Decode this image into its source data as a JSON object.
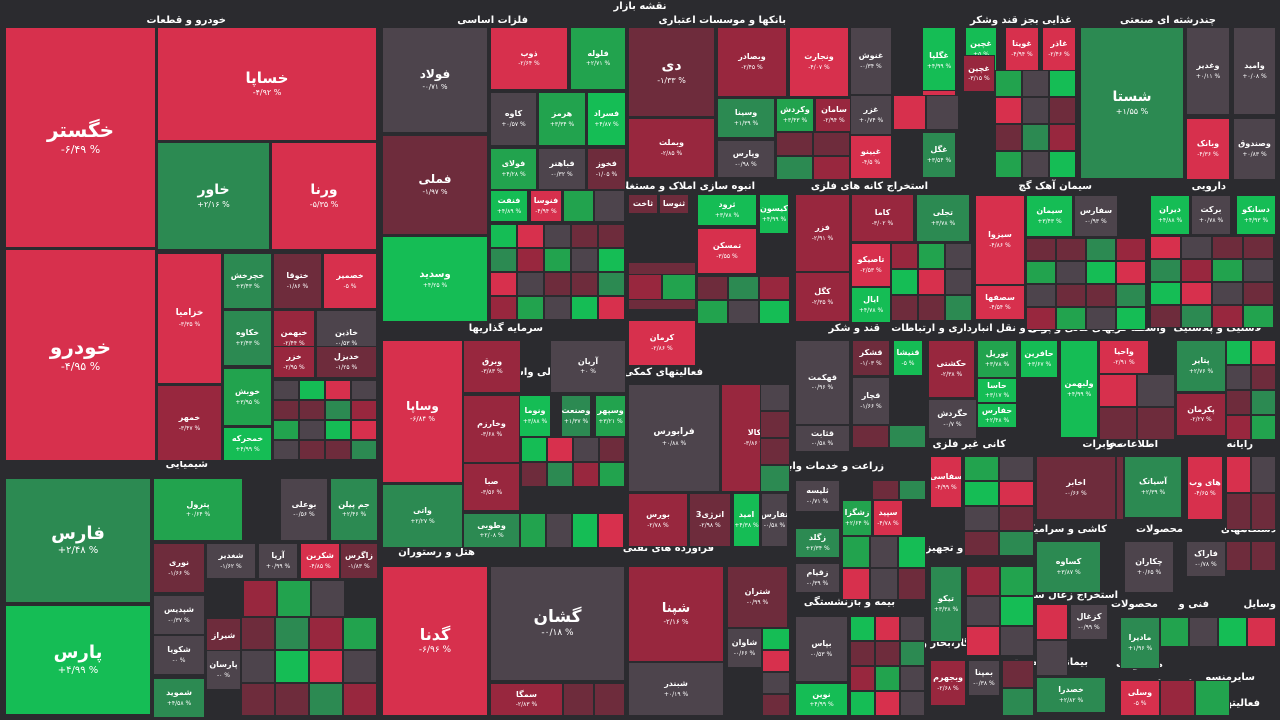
{
  "page": {
    "title": "نقشه بازار"
  },
  "colors": {
    "R": "#d7304d",
    "r": "#98273e",
    "d": "#6e2c3c",
    "n": "#4d444c",
    "g": "#22a34e",
    "G": "#2c8a52",
    "L": "#15bd55",
    "bg": "#2b2b2f"
  },
  "sections": [
    {
      "id": "s1",
      "label": "خودرو و قطعات"
    },
    {
      "id": "s2",
      "label": "فلزات اساسی"
    },
    {
      "id": "s3",
      "label": "بانکها و موسسات اعتباری"
    },
    {
      "id": "s4",
      "label": "غذایی بجز قند وشکر"
    },
    {
      "id": "s5",
      "label": "چندرشته ای صنعتی"
    },
    {
      "id": "s6",
      "label": "انبوه سازی املاک و مستغلات"
    },
    {
      "id": "s7",
      "label": "استخراج کانه های فلزی"
    },
    {
      "id": "s8",
      "label": "سیمان آهک گچ"
    },
    {
      "id": "s9",
      "label": "دارویی"
    },
    {
      "id": "s10",
      "label": "سرمایه گذاریها"
    },
    {
      "id": "s11",
      "label": "فعالیتهای کمکی به نهاد های مالی واسط"
    },
    {
      "id": "s12",
      "label": "قند و شکر"
    },
    {
      "id": "s13",
      "label": "حمل و نقل انبارداری و ارتباطات"
    },
    {
      "id": "s14",
      "label": "واسطه گریهای مالی و پولی"
    },
    {
      "id": "s15",
      "label": "لاستیک و پلاستیک"
    },
    {
      "id": "s16",
      "label": "شیمیایی"
    },
    {
      "id": "s17",
      "label": "کانی غیر فلزی"
    },
    {
      "id": "s18",
      "label": "مخابرات"
    },
    {
      "id": "s19",
      "label": "اطلاعات و"
    },
    {
      "id": "s20",
      "label": "رایانه"
    },
    {
      "id": "s21",
      "label": "زراعت و خدمات وابسته"
    },
    {
      "id": "s22",
      "label": "هتل و رستوران"
    },
    {
      "id": "s23",
      "label": "فرآورده های نفتی"
    },
    {
      "id": "s24",
      "label": "ماشین آلات و تجهیزات"
    },
    {
      "id": "s25",
      "label": "کاشی و سرامیک"
    },
    {
      "id": "s26",
      "label": "محصولات"
    },
    {
      "id": "s27",
      "label": "دستگاههای"
    },
    {
      "id": "s28",
      "label": "بیمه و بازنشستگی"
    },
    {
      "id": "s29",
      "label": "استخراج زغال سنگ"
    },
    {
      "id": "s30",
      "label": "محصولات"
    },
    {
      "id": "s31",
      "label": "فنی و"
    },
    {
      "id": "s32",
      "label": "وسایل"
    },
    {
      "id": "s33",
      "label": "عرضه برق،گاز،بخار و آب"
    },
    {
      "id": "s34",
      "label": "استخراج"
    },
    {
      "id": "s35",
      "label": "خرده"
    },
    {
      "id": "s36",
      "label": "بیمانکاری صنعتی"
    },
    {
      "id": "s37",
      "label": "محصولات"
    },
    {
      "id": "s38",
      "label": "استخراج"
    },
    {
      "id": "s39",
      "label": "منسو"
    },
    {
      "id": "s40",
      "label": "سایر"
    },
    {
      "id": "s41",
      "label": "فعالیتها"
    }
  ],
  "tiles": [
    {
      "name": "خگستر",
      "value": "-۶/۴۹ %",
      "color": "R"
    },
    {
      "name": "خساپا",
      "value": "-۴/۹۲ %",
      "color": "R"
    },
    {
      "name": "خاور",
      "value": "+۲/۱۶ %",
      "color": "G"
    },
    {
      "name": "ورنا",
      "value": "-۵/۳۵ %",
      "color": "R"
    },
    {
      "name": "خودرو",
      "value": "-۴/۹۵ %",
      "color": "R"
    },
    {
      "name": "خزامیا",
      "value": "-۳/۳۵ %",
      "color": "R"
    },
    {
      "name": "خچرخش",
      "value": "+۳/۴۳ %",
      "color": "G"
    },
    {
      "name": "ختوقا",
      "value": "-۱/۸۶ %",
      "color": "d"
    },
    {
      "name": "خصمیر",
      "value": "-۵ %",
      "color": "R"
    },
    {
      "name": "خکاوه",
      "value": "+۲/۴۳ %",
      "color": "G"
    },
    {
      "name": "خبهمن",
      "value": "-۲/۴۴ %",
      "color": "r"
    },
    {
      "name": "خاذین",
      "value": "-۰/۵۳ %",
      "color": "n"
    },
    {
      "name": "خزر",
      "value": "-۲/۹۵ %",
      "color": "r"
    },
    {
      "name": "خدیزل",
      "value": "-۱/۲۵ %",
      "color": "d"
    },
    {
      "name": "خوبش",
      "value": "+۳/۹۵ %",
      "color": "g"
    },
    {
      "name": "خمهر",
      "value": "-۳/۴۷ %",
      "color": "r"
    },
    {
      "name": "خمحرکه",
      "value": "+۴/۹۹ %",
      "color": "L"
    },
    {
      "name": "فولاد",
      "value": "-۰/۷۱ %",
      "color": "n"
    },
    {
      "name": "ذوب",
      "value": "-۲/۶۴ %",
      "color": "R"
    },
    {
      "name": "فلوله",
      "value": "+۲/۷۱ %",
      "color": "g"
    },
    {
      "name": "فملی",
      "value": "-۱/۹۷ %",
      "color": "d"
    },
    {
      "name": "کاوه",
      "value": "+۰/۵۷ %",
      "color": "n"
    },
    {
      "name": "هرمز",
      "value": "+۳/۳۴ %",
      "color": "g"
    },
    {
      "name": "فسراد",
      "value": "+۴/۸۷ %",
      "color": "L"
    },
    {
      "name": "فولای",
      "value": "+۴/۲۸ %",
      "color": "g"
    },
    {
      "name": "فباهنر",
      "value": "-۰/۳۲ %",
      "color": "n"
    },
    {
      "name": "فخوز",
      "value": "-۱/۰۵ %",
      "color": "d"
    },
    {
      "name": "وسدید",
      "value": "+۴/۲۵ %",
      "color": "L"
    },
    {
      "name": "فنفت",
      "value": "+۴/۸۹ %",
      "color": "L"
    },
    {
      "name": "فنوسا",
      "value": "-۴/۹۴ %",
      "color": "R"
    },
    {
      "name": "دی",
      "value": "-۱/۳۳ %",
      "color": "d"
    },
    {
      "name": "وبصادر",
      "value": "-۲/۴۵ %",
      "color": "r"
    },
    {
      "name": "ونجارت",
      "value": "-۴/۰۷ %",
      "color": "R"
    },
    {
      "name": "وبملت",
      "value": "-۲/۸۵ %",
      "color": "r"
    },
    {
      "name": "وسینا",
      "value": "+۱/۳۹ %",
      "color": "G"
    },
    {
      "name": "وکردش",
      "value": "+۳/۴۳ %",
      "color": "g"
    },
    {
      "name": "سامان",
      "value": "-۲/۹۴ %",
      "color": "r"
    },
    {
      "name": "وپارس",
      "value": "-۰/۹۸ %",
      "color": "n"
    },
    {
      "name": "غنوش",
      "value": "-۰/۳۴ %",
      "color": "n"
    },
    {
      "name": "غگلپا",
      "value": "+۴/۹۹ %",
      "color": "L"
    },
    {
      "name": "غچین",
      "value": "+۵ %",
      "color": "L"
    },
    {
      "name": "غویتا",
      "value": "-۴/۹۴ %",
      "color": "R"
    },
    {
      "name": "غاذر",
      "value": "-۲/۴۶ %",
      "color": "R"
    },
    {
      "name": "غچین",
      "value": "-۳/۱۵ %",
      "color": "r"
    },
    {
      "name": "غزر",
      "value": "+۰/۷۴ %",
      "color": "n"
    },
    {
      "name": "غدشت",
      "value": "-۴/۹۸ %",
      "color": "R"
    },
    {
      "name": "غبینو",
      "value": "-۴/۵ %",
      "color": "R"
    },
    {
      "name": "غگل",
      "value": "+۳/۵۴ %",
      "color": "G"
    },
    {
      "name": "شستا",
      "value": "+۱/۵۵ %",
      "color": "G"
    },
    {
      "name": "وغدیر",
      "value": "+۰/۱۱ %",
      "color": "n"
    },
    {
      "name": "وامید",
      "value": "+۰/۰۸ %",
      "color": "n"
    },
    {
      "name": "وبانک",
      "value": "-۴/۳۶ %",
      "color": "R"
    },
    {
      "name": "وصندوق",
      "value": "+۰/۸۳ %",
      "color": "n"
    },
    {
      "name": "ثاخت",
      "value": "",
      "color": "d"
    },
    {
      "name": "ثنوسا",
      "value": "",
      "color": "d"
    },
    {
      "name": "ثرود",
      "value": "+۳/۷۸ %",
      "color": "L"
    },
    {
      "name": "کیسون",
      "value": "+۴/۹۹ %",
      "color": "L"
    },
    {
      "name": "تمسکن",
      "value": "-۳/۵۵ %",
      "color": "R"
    },
    {
      "name": "وآذر",
      "value": "-۰/۱۹ %",
      "color": "d"
    },
    {
      "name": "کرمان",
      "value": "-۲/۸۶ %",
      "color": "R"
    },
    {
      "name": "فزر",
      "value": "-۲/۹۱ %",
      "color": "r"
    },
    {
      "name": "کاما",
      "value": "-۳/۰۲ %",
      "color": "r"
    },
    {
      "name": "تجلی",
      "value": "+۳/۷۸ %",
      "color": "G"
    },
    {
      "name": "تاصیکو",
      "value": "-۲/۵۳ %",
      "color": "R"
    },
    {
      "name": "کگل",
      "value": "-۲/۳۵ %",
      "color": "r"
    },
    {
      "name": "ایال",
      "value": "+۴/۷۸ %",
      "color": "L"
    },
    {
      "name": "سیزوا",
      "value": "-۴/۸۶ %",
      "color": "R"
    },
    {
      "name": "سیمان",
      "value": "+۳/۴۳ %",
      "color": "L"
    },
    {
      "name": "سفارس",
      "value": "-۰/۹۳ %",
      "color": "n"
    },
    {
      "name": "سصفها",
      "value": "-۴/۵۴ %",
      "color": "R"
    },
    {
      "name": "دیران",
      "value": "+۴/۸۸ %",
      "color": "L"
    },
    {
      "name": "برکت",
      "value": "+۰/۷۸ %",
      "color": "n"
    },
    {
      "name": "دسانکو",
      "value": "+۴/۹۳ %",
      "color": "L"
    },
    {
      "name": "وساپا",
      "value": "-۶/۸۴ %",
      "color": "R"
    },
    {
      "name": "وبرق",
      "value": "-۳/۸۳ %",
      "color": "r"
    },
    {
      "name": "آریان",
      "value": "+۰ %",
      "color": "n"
    },
    {
      "name": "وخارزم",
      "value": "-۳/۶۸ %",
      "color": "r"
    },
    {
      "name": "ونوما",
      "value": "+۳/۸۸ %",
      "color": "L"
    },
    {
      "name": "وصنعت",
      "value": "+۱/۳۷ %",
      "color": "G"
    },
    {
      "name": "وسپهر",
      "value": "+۳/۲۱ %",
      "color": "g"
    },
    {
      "name": "صبا",
      "value": "-۳/۵۶ %",
      "color": "r"
    },
    {
      "name": "واتی",
      "value": "+۲/۲۷ %",
      "color": "G"
    },
    {
      "name": "وطوبی",
      "value": "+۲/۰۸ %",
      "color": "G"
    },
    {
      "name": "فرابورس",
      "value": "+۰/۸۸ %",
      "color": "n"
    },
    {
      "name": "کالا",
      "value": "-۳/۸۶ %",
      "color": "r"
    },
    {
      "name": "بورس",
      "value": "-۲/۷۸ %",
      "color": "r"
    },
    {
      "name": "انرژی3",
      "value": "-۲/۹۸ %",
      "color": "d"
    },
    {
      "name": "امید",
      "value": "+۴/۳۸ %",
      "color": "L"
    },
    {
      "name": "تفارس",
      "value": "-۰/۵۸ %",
      "color": "n"
    },
    {
      "name": "قهکمت",
      "value": "-۰/۹۶ %",
      "color": "n"
    },
    {
      "name": "قشکر",
      "value": "-۱/۰۳ %",
      "color": "d"
    },
    {
      "name": "قنیشا",
      "value": "-۵ %",
      "color": "L"
    },
    {
      "name": "قچار",
      "value": "-۱/۶۶ %",
      "color": "n"
    },
    {
      "name": "قثابت",
      "value": "-۰/۵۸ %",
      "color": "n"
    },
    {
      "name": "حکشتی",
      "value": "-۲/۳۸ %",
      "color": "r"
    },
    {
      "name": "توریل",
      "value": "+۳/۷۸ %",
      "color": "g"
    },
    {
      "name": "حافرین",
      "value": "+۳/۶۷ %",
      "color": "L"
    },
    {
      "name": "حاسا",
      "value": "+۳/۱۷ %",
      "color": "L"
    },
    {
      "name": "حفارس",
      "value": "+۲/۴۸ %",
      "color": "L"
    },
    {
      "name": "حگردش",
      "value": "-۰/۷ %",
      "color": "n"
    },
    {
      "name": "ولبهمن",
      "value": "+۴/۹۹ %",
      "color": "L"
    },
    {
      "name": "واحیا",
      "value": "-۲/۹۱ %",
      "color": "R"
    },
    {
      "name": "پتایر",
      "value": "+۲/۷۶ %",
      "color": "G"
    },
    {
      "name": "پکرمان",
      "value": "-۲/۲۷ %",
      "color": "r"
    },
    {
      "name": "فارس",
      "value": "+۲/۴۸ %",
      "color": "G"
    },
    {
      "name": "پترول",
      "value": "+۰/۶۴ %",
      "color": "g"
    },
    {
      "name": "بوعلی",
      "value": "-۰/۵۶ %",
      "color": "n"
    },
    {
      "name": "جم پیلن",
      "value": "+۲/۴۶ %",
      "color": "G"
    },
    {
      "name": "پارس",
      "value": "+۴/۹۹ %",
      "color": "L"
    },
    {
      "name": "نوری",
      "value": "-۱/۶۶ %",
      "color": "d"
    },
    {
      "name": "شغدیر",
      "value": "-۱/۶۲ %",
      "color": "n"
    },
    {
      "name": "آریا",
      "value": "+۰/۹۹ %",
      "color": "n"
    },
    {
      "name": "شکربن",
      "value": "-۴/۸۵ %",
      "color": "R"
    },
    {
      "name": "زاگرس",
      "value": "-۱/۸۳ %",
      "color": "d"
    },
    {
      "name": "شپدیس",
      "value": "-۰/۳۷ %",
      "color": "n"
    },
    {
      "name": "شکویا",
      "value": "-۰ %",
      "color": "n"
    },
    {
      "name": "شیراز",
      "value": "",
      "color": "d"
    },
    {
      "name": "پارسان",
      "value": "-۰ %",
      "color": "n"
    },
    {
      "name": "شموید",
      "value": "+۴/۵۸ %",
      "color": "G"
    },
    {
      "name": "گدنا",
      "value": "-۶/۹۶ %",
      "color": "R"
    },
    {
      "name": "گشان",
      "value": "-۰/۱۸ %",
      "color": "n"
    },
    {
      "name": "سمگا",
      "value": "-۲/۸۳ %",
      "color": "r"
    },
    {
      "name": "شپنا",
      "value": "-۲/۱۶ %",
      "color": "r"
    },
    {
      "name": "شتران",
      "value": "-۰/۹۹ %",
      "color": "d"
    },
    {
      "name": "شاوان",
      "value": "-۰/۶۶ %",
      "color": "n"
    },
    {
      "name": "شبندر",
      "value": "+۰/۱۹ %",
      "color": "n"
    },
    {
      "name": "ثلیسه",
      "value": "-۰/۷۱ %",
      "color": "n"
    },
    {
      "name": "زشگزا",
      "value": "+۲/۶۴ %",
      "color": "g"
    },
    {
      "name": "سپید",
      "value": "-۴/۷۸ %",
      "color": "R"
    },
    {
      "name": "زگلد",
      "value": "+۲/۳۴ %",
      "color": "G"
    },
    {
      "name": "زقیام",
      "value": "-۰/۳۹ %",
      "color": "n"
    },
    {
      "name": "بپاس",
      "value": "-۰/۵۳ %",
      "color": "n"
    },
    {
      "name": "نوین",
      "value": "+۴/۹۹ %",
      "color": "L"
    },
    {
      "name": "سفاسی",
      "value": "-۴/۹۹ %",
      "color": "R"
    },
    {
      "name": "تیکو",
      "value": "+۳/۳۸ %",
      "color": "G"
    },
    {
      "name": "وبجهرم",
      "value": "-۲/۶۸ %",
      "color": "r"
    },
    {
      "name": "بمپنا",
      "value": "-۰/۳۸ %",
      "color": "n"
    },
    {
      "name": "اخابر",
      "value": "-۰/۶۶ %",
      "color": "d"
    },
    {
      "name": "آسیاتک",
      "value": "+۲/۳۹ %",
      "color": "G"
    },
    {
      "name": "های وب",
      "value": "-۴/۶۵ %",
      "color": "R"
    },
    {
      "name": "کساوه",
      "value": "+۳/۸۷ %",
      "color": "G"
    },
    {
      "name": "چکاران",
      "value": "+۰/۶۵ %",
      "color": "n"
    },
    {
      "name": "فاراک",
      "value": "-۰/۷۸ %",
      "color": "n"
    },
    {
      "name": "کزغال",
      "value": "-۰/۹۹ %",
      "color": "n"
    },
    {
      "name": "مادیرا",
      "value": "+۱/۹۶ %",
      "color": "G"
    },
    {
      "name": "وسلی",
      "value": "-۵ %",
      "color": "R"
    },
    {
      "name": "خصدرا",
      "value": "+۲/۸۲ %",
      "color": "G"
    }
  ]
}
